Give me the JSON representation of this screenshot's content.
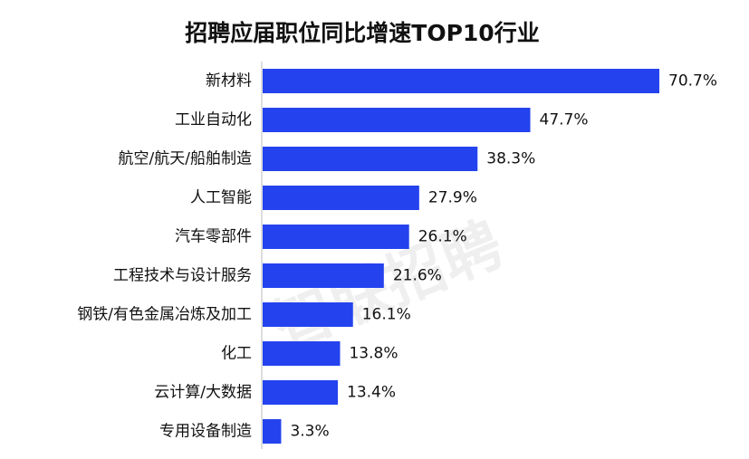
{
  "chart_data": {
    "type": "bar",
    "orientation": "horizontal",
    "title": "招聘应届职位同比增速TOP10行业",
    "categories": [
      "新材料",
      "工业自动化",
      "航空/航天/船舶制造",
      "人工智能",
      "汽车零部件",
      "工程技术与设计服务",
      "钢铁/有色金属冶炼及加工",
      "化工",
      "云计算/大数据",
      "专用设备制造"
    ],
    "values": [
      70.7,
      47.7,
      38.3,
      27.9,
      26.1,
      21.6,
      16.1,
      13.8,
      13.4,
      3.3
    ],
    "value_labels": [
      "70.7%",
      "47.7%",
      "38.3%",
      "27.9%",
      "26.1%",
      "21.6%",
      "16.1%",
      "13.8%",
      "13.4%",
      "3.3%"
    ],
    "color": "#2443ee",
    "watermark": "智联招聘"
  }
}
